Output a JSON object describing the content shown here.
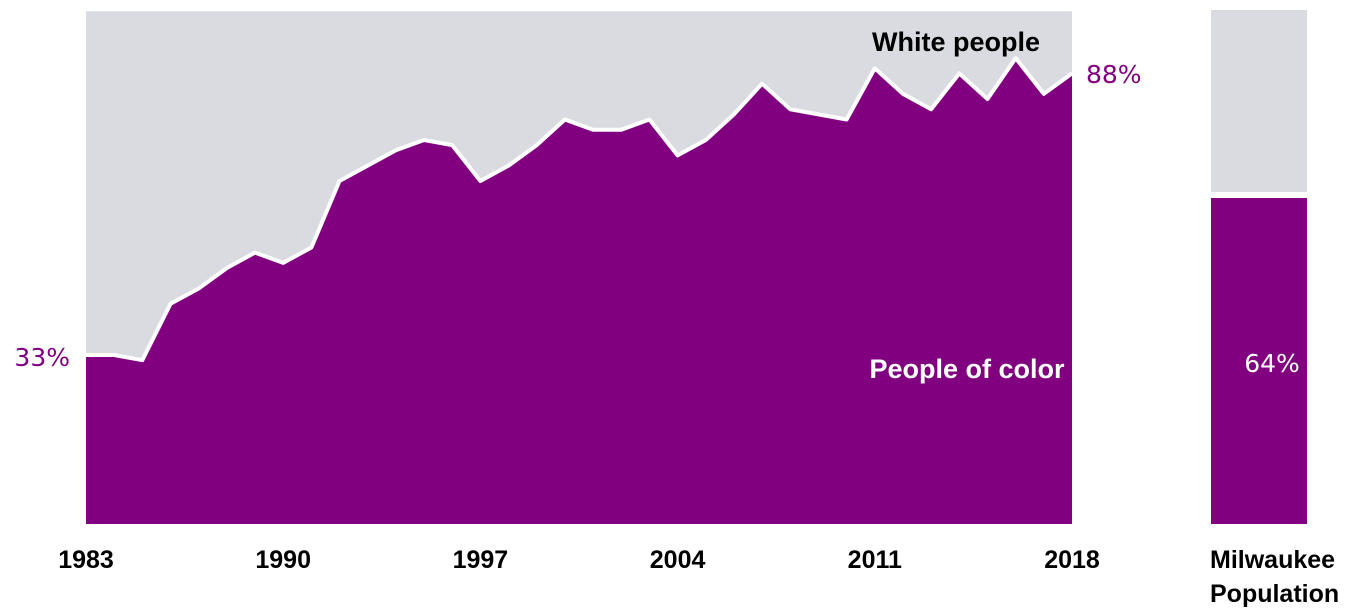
{
  "chart_data": [
    {
      "type": "area",
      "x": [
        1983,
        1984,
        1985,
        1986,
        1987,
        1988,
        1989,
        1990,
        1991,
        1992,
        1993,
        1994,
        1995,
        1996,
        1997,
        1998,
        1999,
        2000,
        2001,
        2002,
        2003,
        2004,
        2005,
        2006,
        2007,
        2008,
        2009,
        2010,
        2011,
        2012,
        2013,
        2014,
        2015,
        2016,
        2017,
        2018
      ],
      "series": [
        {
          "name": "People of color",
          "color": "#800080",
          "values": [
            33,
            33,
            32,
            43,
            46,
            50,
            53,
            51,
            54,
            67,
            70,
            73,
            75,
            74,
            67,
            70,
            74,
            79,
            77,
            77,
            79,
            72,
            75,
            80,
            86,
            81,
            80,
            79,
            89,
            84,
            81,
            88,
            83,
            91,
            84,
            88
          ]
        },
        {
          "name": "White people",
          "color": "#d9dbe0",
          "values": [
            67,
            67,
            68,
            57,
            54,
            50,
            47,
            49,
            46,
            33,
            30,
            27,
            25,
            26,
            33,
            30,
            26,
            21,
            23,
            23,
            21,
            28,
            25,
            20,
            14,
            19,
            20,
            21,
            11,
            16,
            19,
            12,
            17,
            9,
            16,
            12
          ]
        }
      ],
      "ylim": [
        0,
        100
      ],
      "xtick_labels": [
        "1983",
        "1990",
        "1997",
        "2004",
        "2011",
        "2018"
      ],
      "start_label": "33%",
      "end_label": "88%",
      "grid": false
    },
    {
      "type": "bar",
      "categories": [
        "Milwaukee Population"
      ],
      "series": [
        {
          "name": "People of color",
          "color": "#800080",
          "values": [
            64
          ]
        },
        {
          "name": "White people",
          "color": "#d9dbe0",
          "values": [
            36
          ]
        }
      ],
      "ylim": [
        0,
        100
      ],
      "value_label": "64%",
      "category_label_line1": "Milwaukee",
      "category_label_line2": "Population"
    }
  ]
}
